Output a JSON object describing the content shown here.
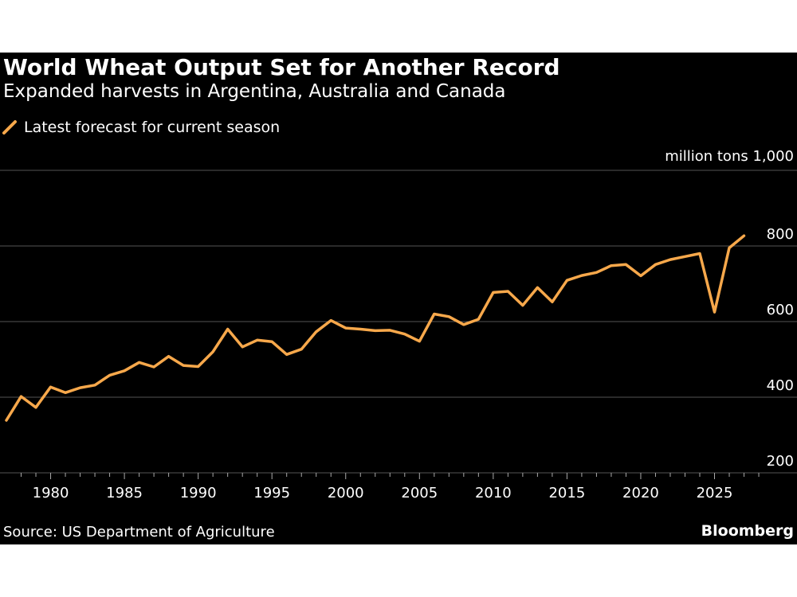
{
  "header": {
    "title": "World Wheat Output Set for Another Record",
    "subtitle": "Expanded harvests in Argentina, Australia and Canada"
  },
  "footer": {
    "source": "Source: US Department of Agriculture",
    "brand": "Bloomberg"
  },
  "colors": {
    "background": "#000000",
    "line": "#f7a84b",
    "grid": "#555555",
    "text": "#ffffff"
  },
  "chart_data": {
    "type": "line",
    "title": "World Wheat Output Set for Another Record",
    "subtitle": "Expanded harvests in Argentina, Australia and Canada",
    "ylabel": "million tons",
    "xlim": [
      1977,
      2029
    ],
    "ylim": [
      160,
      1000
    ],
    "y_ticks": [
      200,
      400,
      600,
      800,
      1000
    ],
    "y_tick_labels": [
      "200",
      "400",
      "600",
      "800",
      "1,000"
    ],
    "x_ticks": [
      1980,
      1985,
      1990,
      1995,
      2000,
      2005,
      2010,
      2015,
      2020,
      2025
    ],
    "grid": true,
    "legend_position": "top-left",
    "series": [
      {
        "name": "Latest forecast for current season",
        "x": [
          1977,
          1978,
          1979,
          1980,
          1981,
          1982,
          1983,
          1984,
          1985,
          1986,
          1987,
          1988,
          1989,
          1990,
          1991,
          1992,
          1993,
          1994,
          1995,
          1996,
          1997,
          1998,
          1999,
          2000,
          2001,
          2002,
          2003,
          2004,
          2005,
          2006,
          2007,
          2008,
          2009,
          2010,
          2011,
          2012,
          2013,
          2014,
          2015,
          2016,
          2017,
          2018,
          2019,
          2020,
          2021,
          2022,
          2023,
          2024,
          2025,
          2026,
          2027
        ],
        "y": [
          339,
          402,
          373,
          427,
          412,
          425,
          432,
          458,
          470,
          492,
          480,
          508,
          484,
          481,
          520,
          580,
          533,
          551,
          547,
          513,
          527,
          573,
          603,
          583,
          580,
          576,
          577,
          567,
          548,
          620,
          613,
          592,
          606,
          677,
          680,
          643,
          690,
          652,
          709,
          722,
          730,
          748,
          751,
          721,
          751,
          764,
          772,
          780,
          625,
          795,
          827
        ]
      }
    ]
  }
}
